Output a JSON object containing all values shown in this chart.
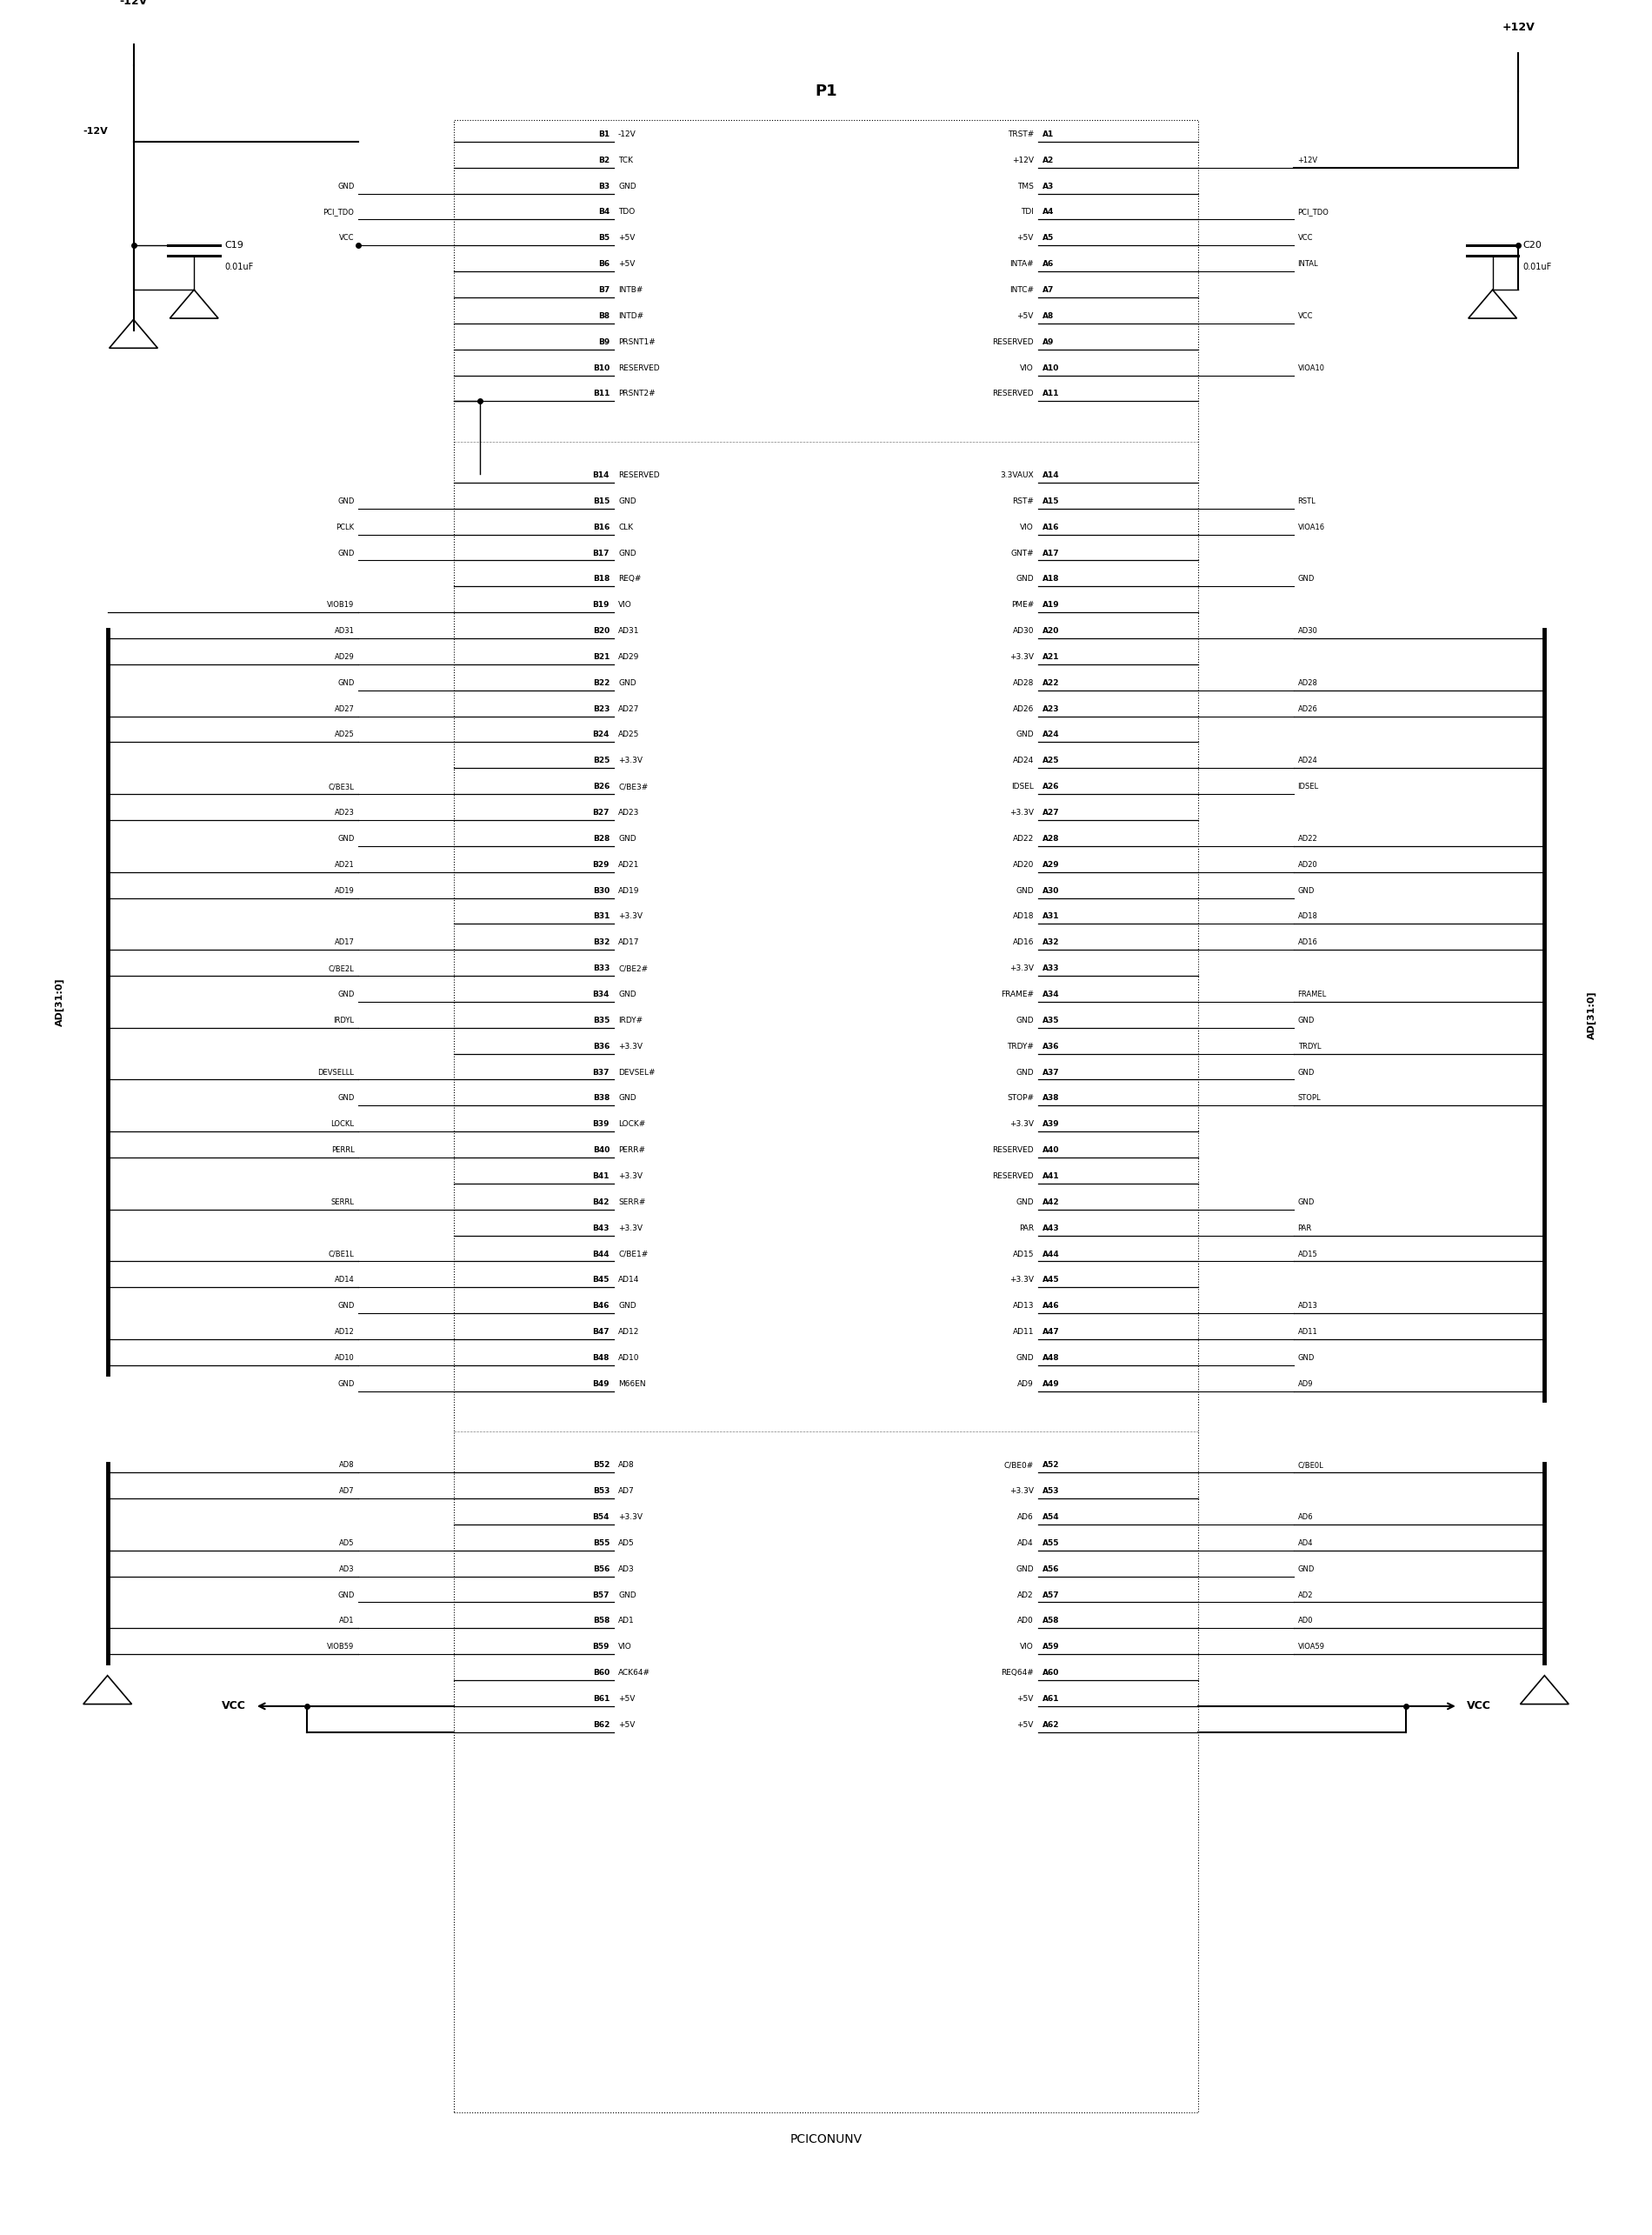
{
  "title": "P1",
  "subtitle": "PCICONUNV",
  "bg_color": "#ffffff",
  "fig_width": 19.0,
  "fig_height": 25.7,
  "b_pins": [
    [
      "B1",
      "-12V"
    ],
    [
      "B2",
      "TCK"
    ],
    [
      "B3",
      "GND"
    ],
    [
      "B4",
      "TDO"
    ],
    [
      "B5",
      "+5V"
    ],
    [
      "B6",
      "+5V"
    ],
    [
      "B7",
      "INTB#"
    ],
    [
      "B8",
      "INTD#"
    ],
    [
      "B9",
      "PRSNT1#"
    ],
    [
      "B10",
      "RESERVED"
    ],
    [
      "B11",
      "PRSNT2#"
    ],
    [
      "B14",
      "RESERVED"
    ],
    [
      "B15",
      "GND"
    ],
    [
      "B16",
      "CLK"
    ],
    [
      "B17",
      "GND"
    ],
    [
      "B18",
      "REQ#"
    ],
    [
      "B19",
      "VIO"
    ],
    [
      "B20",
      "AD31"
    ],
    [
      "B21",
      "AD29"
    ],
    [
      "B22",
      "GND"
    ],
    [
      "B23",
      "AD27"
    ],
    [
      "B24",
      "AD25"
    ],
    [
      "B25",
      "+3.3V"
    ],
    [
      "B26",
      "C/BE3#"
    ],
    [
      "B27",
      "AD23"
    ],
    [
      "B28",
      "GND"
    ],
    [
      "B29",
      "AD21"
    ],
    [
      "B30",
      "AD19"
    ],
    [
      "B31",
      "+3.3V"
    ],
    [
      "B32",
      "AD17"
    ],
    [
      "B33",
      "C/BE2#"
    ],
    [
      "B34",
      "GND"
    ],
    [
      "B35",
      "IRDY#"
    ],
    [
      "B36",
      "+3.3V"
    ],
    [
      "B37",
      "DEVSEL#"
    ],
    [
      "B38",
      "GND"
    ],
    [
      "B39",
      "LOCK#"
    ],
    [
      "B40",
      "PERR#"
    ],
    [
      "B41",
      "+3.3V"
    ],
    [
      "B42",
      "SERR#"
    ],
    [
      "B43",
      "+3.3V"
    ],
    [
      "B44",
      "C/BE1#"
    ],
    [
      "B45",
      "AD14"
    ],
    [
      "B46",
      "GND"
    ],
    [
      "B47",
      "AD12"
    ],
    [
      "B48",
      "AD10"
    ],
    [
      "B49",
      "M66EN"
    ],
    [
      "B52",
      "AD8"
    ],
    [
      "B53",
      "AD7"
    ],
    [
      "B54",
      "+3.3V"
    ],
    [
      "B55",
      "AD5"
    ],
    [
      "B56",
      "AD3"
    ],
    [
      "B57",
      "GND"
    ],
    [
      "B58",
      "AD1"
    ],
    [
      "B59",
      "VIO"
    ],
    [
      "B60",
      "ACK64#"
    ],
    [
      "B61",
      "+5V"
    ],
    [
      "B62",
      "+5V"
    ]
  ],
  "a_pins": [
    [
      "A1",
      "TRST#"
    ],
    [
      "A2",
      "+12V"
    ],
    [
      "A3",
      "TMS"
    ],
    [
      "A4",
      "TDI"
    ],
    [
      "A5",
      "+5V"
    ],
    [
      "A6",
      "INTA#"
    ],
    [
      "A7",
      "INTC#"
    ],
    [
      "A8",
      "+5V"
    ],
    [
      "A9",
      "RESERVED"
    ],
    [
      "A10",
      "VIO"
    ],
    [
      "A11",
      "RESERVED"
    ],
    [
      "A14",
      "3.3VAUX"
    ],
    [
      "A15",
      "RST#"
    ],
    [
      "A16",
      "VIO"
    ],
    [
      "A17",
      "GNT#"
    ],
    [
      "A18",
      "GND"
    ],
    [
      "A19",
      "PME#"
    ],
    [
      "A20",
      "AD30"
    ],
    [
      "A21",
      "+3.3V"
    ],
    [
      "A22",
      "AD28"
    ],
    [
      "A23",
      "AD26"
    ],
    [
      "A24",
      "GND"
    ],
    [
      "A25",
      "AD24"
    ],
    [
      "A26",
      "IDSEL"
    ],
    [
      "A27",
      "+3.3V"
    ],
    [
      "A28",
      "AD22"
    ],
    [
      "A29",
      "AD20"
    ],
    [
      "A30",
      "GND"
    ],
    [
      "A31",
      "AD18"
    ],
    [
      "A32",
      "AD16"
    ],
    [
      "A33",
      "+3.3V"
    ],
    [
      "A34",
      "FRAME#"
    ],
    [
      "A35",
      "GND"
    ],
    [
      "A36",
      "TRDY#"
    ],
    [
      "A37",
      "GND"
    ],
    [
      "A38",
      "STOP#"
    ],
    [
      "A39",
      "+3.3V"
    ],
    [
      "A40",
      "RESERVED"
    ],
    [
      "A41",
      "RESERVED"
    ],
    [
      "A42",
      "GND"
    ],
    [
      "A43",
      "PAR"
    ],
    [
      "A44",
      "AD15"
    ],
    [
      "A45",
      "+3.3V"
    ],
    [
      "A46",
      "AD13"
    ],
    [
      "A47",
      "AD11"
    ],
    [
      "A48",
      "GND"
    ],
    [
      "A49",
      "AD9"
    ],
    [
      "A52",
      "C/BE0#"
    ],
    [
      "A53",
      "+3.3V"
    ],
    [
      "A54",
      "AD6"
    ],
    [
      "A55",
      "AD4"
    ],
    [
      "A56",
      "GND"
    ],
    [
      "A57",
      "AD2"
    ],
    [
      "A58",
      "AD0"
    ],
    [
      "A59",
      "VIO"
    ],
    [
      "A60",
      "REQ64#"
    ],
    [
      "A61",
      "+5V"
    ],
    [
      "A62",
      "+5V"
    ]
  ],
  "b_left_signals": {
    "B3": "GND",
    "B4": "PCI_TDO",
    "B5": "VCC",
    "B15": "GND",
    "B16": "PCLK",
    "B17": "GND",
    "B19": "VIOB19",
    "B20": "AD31",
    "B21": "AD29",
    "B22": "GND",
    "B23": "AD27",
    "B24": "AD25",
    "B26": "C/BE3L",
    "B27": "AD23",
    "B28": "GND",
    "B29": "AD21",
    "B30": "AD19",
    "B32": "AD17",
    "B33": "C/BE2L",
    "B34": "GND",
    "B35": "IRDYL",
    "B37": "DEVSELLL",
    "B38": "GND",
    "B39": "LOCKL",
    "B40": "PERRL",
    "B42": "SERRL",
    "B44": "C/BE1L",
    "B45": "AD14",
    "B46": "GND",
    "B47": "AD12",
    "B48": "AD10",
    "B49": "GND",
    "B52": "AD8",
    "B53": "AD7",
    "B55": "AD5",
    "B56": "AD3",
    "B57": "GND",
    "B58": "AD1",
    "B59": "VIOB59"
  },
  "a_right_signals": {
    "A2": "+12V",
    "A4": "PCI_TDO",
    "A5": "VCC",
    "A6": "INTAL",
    "A8": "VCC",
    "A10": "VIOA10",
    "A15": "RSTL",
    "A16": "VIOA16",
    "A18": "GND",
    "A20": "AD30",
    "A22": "AD28",
    "A23": "AD26",
    "A25": "AD24",
    "A26": "IDSEL",
    "A28": "AD22",
    "A29": "AD20",
    "A30": "GND",
    "A31": "AD18",
    "A32": "AD16",
    "A34": "FRAMEL",
    "A35": "GND",
    "A36": "TRDYL",
    "A37": "GND",
    "A38": "STOPL",
    "A42": "GND",
    "A43": "PAR",
    "A44": "AD15",
    "A46": "AD13",
    "A47": "AD11",
    "A48": "GND",
    "A49": "AD9",
    "A52": "C/BE0L",
    "A54": "AD6",
    "A55": "AD4",
    "A56": "GND",
    "A57": "AD2",
    "A58": "AD0",
    "A59": "VIOA59"
  },
  "bus_b_main": [
    "B20",
    "B21",
    "B23",
    "B24",
    "B26",
    "B27",
    "B29",
    "B30",
    "B32",
    "B33",
    "B35",
    "B37",
    "B39",
    "B40",
    "B42",
    "B44",
    "B45",
    "B47",
    "B48"
  ],
  "bus_b_bottom": [
    "B52",
    "B53",
    "B55",
    "B56",
    "B58",
    "B59"
  ],
  "bus_a_main": [
    "A20",
    "A22",
    "A23",
    "A25",
    "A28",
    "A29",
    "A31",
    "A32",
    "A34",
    "A36",
    "A38",
    "A43",
    "A44",
    "A46",
    "A47",
    "A49"
  ],
  "bus_a_bottom": [
    "A52",
    "A54",
    "A55",
    "A57",
    "A58",
    "A59"
  ]
}
